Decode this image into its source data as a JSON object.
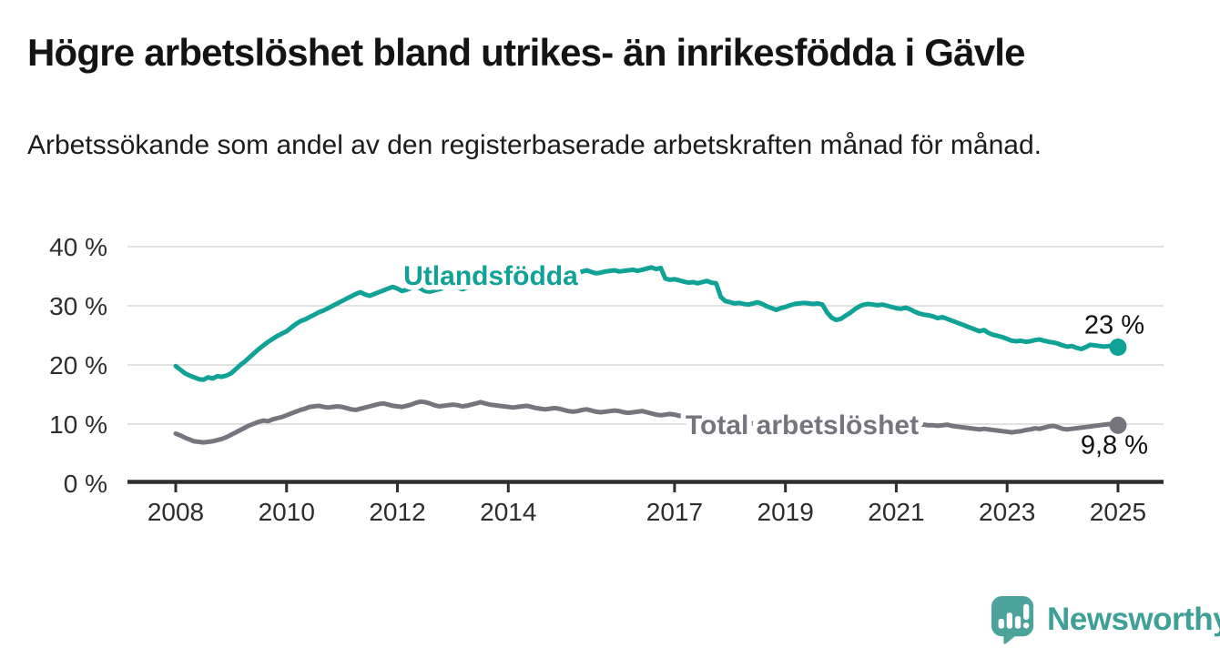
{
  "header": {
    "title": "Högre arbetslöshet bland utrikes- än inrikesfödda i Gävle",
    "subtitle": "Arbetssökande som andel av den registerbaserade arbetskraften månad för månad."
  },
  "footer": {
    "brand": "Newsworthy",
    "brand_text_color": "#3EA097",
    "brand_icon_color": "#4CA39B",
    "brand_icon": "newsworthy-speech-bubble-chart-icon"
  },
  "colors": {
    "foreign_series": "#10a296",
    "total_series": "#76757d",
    "gridline": "#d9d9d9",
    "axis": "#2e2e2e",
    "tick_text": "#2d2d2d",
    "annotation_text": "#111111",
    "background": "#ffffff"
  },
  "chart_data": {
    "type": "line",
    "unit": "%",
    "grid": true,
    "x_axis": {
      "tick_years": [
        2008,
        2010,
        2012,
        2014,
        2017,
        2019,
        2021,
        2023,
        2025
      ],
      "tick_labels": [
        "2008",
        "2010",
        "2012",
        "2014",
        "2017",
        "2019",
        "2021",
        "2023",
        "2025"
      ],
      "range_years": [
        2007.1,
        2025.8
      ]
    },
    "y_axis": {
      "ticks": [
        0,
        10,
        20,
        30,
        40
      ],
      "tick_labels": [
        "0 %",
        "10 %",
        "20 %",
        "30 %",
        "40 %"
      ],
      "range": [
        0,
        40
      ]
    },
    "series": [
      {
        "id": "utlandsfodda",
        "name": "Utlandsfödda",
        "label": "Utlandsfödda",
        "color": "#10a296",
        "start_year": 2008,
        "step_months": 1,
        "end_label": "23 %",
        "end_value": 23.0,
        "values": [
          19.8,
          19.2,
          18.6,
          18.2,
          17.9,
          17.6,
          17.5,
          17.9,
          17.7,
          18.1,
          18.0,
          18.2,
          18.6,
          19.3,
          20.0,
          20.6,
          21.3,
          22.0,
          22.7,
          23.3,
          23.9,
          24.4,
          24.9,
          25.3,
          25.7,
          26.3,
          26.9,
          27.4,
          27.7,
          28.1,
          28.5,
          28.9,
          29.2,
          29.6,
          30.0,
          30.4,
          30.8,
          31.2,
          31.6,
          32.0,
          32.3,
          31.9,
          31.7,
          32.0,
          32.3,
          32.6,
          32.9,
          33.2,
          32.9,
          32.5,
          32.7,
          33.0,
          33.3,
          32.9,
          32.5,
          32.4,
          32.6,
          32.8,
          33.0,
          33.2,
          33.4,
          33.1,
          32.8,
          33.0,
          33.3,
          33.6,
          33.8,
          34.0,
          34.2,
          34.4,
          34.5,
          34.6,
          34.7,
          34.8,
          34.9,
          35.0,
          35.1,
          35.0,
          34.9,
          35.0,
          35.1,
          35.2,
          35.1,
          35.2,
          35.3,
          35.2,
          35.3,
          35.5,
          35.8,
          36.0,
          35.7,
          35.5,
          35.6,
          35.8,
          35.9,
          36.0,
          35.8,
          35.9,
          36.0,
          36.1,
          35.9,
          36.1,
          36.3,
          36.5,
          36.2,
          36.4,
          34.6,
          34.4,
          34.5,
          34.3,
          34.1,
          33.9,
          34.0,
          33.8,
          34.0,
          34.2,
          33.9,
          33.8,
          31.5,
          30.8,
          30.6,
          30.4,
          30.5,
          30.3,
          30.2,
          30.4,
          30.6,
          30.3,
          29.9,
          29.6,
          29.3,
          29.6,
          29.8,
          30.1,
          30.3,
          30.4,
          30.5,
          30.4,
          30.3,
          30.4,
          30.2,
          28.9,
          28.0,
          27.6,
          27.8,
          28.3,
          28.8,
          29.4,
          29.9,
          30.2,
          30.3,
          30.2,
          30.1,
          30.2,
          30.0,
          29.8,
          29.6,
          29.5,
          29.7,
          29.4,
          29.0,
          28.7,
          28.5,
          28.4,
          28.2,
          27.9,
          28.1,
          27.8,
          27.5,
          27.2,
          26.9,
          26.6,
          26.3,
          26.0,
          25.7,
          25.9,
          25.4,
          25.1,
          24.9,
          24.7,
          24.4,
          24.1,
          24.0,
          24.1,
          23.9,
          24.0,
          24.2,
          24.3,
          24.1,
          23.9,
          23.8,
          23.6,
          23.3,
          23.1,
          23.2,
          22.9,
          22.7,
          23.0,
          23.4,
          23.3,
          23.2,
          23.1,
          23.2,
          23.1,
          23.0
        ]
      },
      {
        "id": "total-arbetsloshet",
        "name": "Total arbetslöshet",
        "label": "Total arbetslöshet",
        "color": "#76757d",
        "start_year": 2008,
        "step_months": 1,
        "end_label": "9,8 %",
        "end_value": 9.8,
        "values": [
          8.4,
          8.1,
          7.7,
          7.4,
          7.1,
          7.0,
          6.9,
          7.0,
          7.1,
          7.3,
          7.5,
          7.8,
          8.2,
          8.6,
          9.0,
          9.4,
          9.8,
          10.1,
          10.4,
          10.6,
          10.5,
          10.8,
          11.0,
          11.2,
          11.5,
          11.8,
          12.1,
          12.4,
          12.6,
          12.9,
          13.0,
          13.1,
          12.9,
          12.8,
          12.9,
          13.0,
          12.9,
          12.7,
          12.5,
          12.4,
          12.6,
          12.8,
          13.0,
          13.2,
          13.4,
          13.5,
          13.3,
          13.1,
          13.0,
          12.9,
          13.1,
          13.3,
          13.6,
          13.8,
          13.7,
          13.5,
          13.2,
          13.0,
          13.1,
          13.2,
          13.3,
          13.2,
          13.0,
          13.1,
          13.3,
          13.5,
          13.7,
          13.5,
          13.3,
          13.2,
          13.1,
          13.0,
          12.9,
          12.8,
          12.9,
          13.0,
          13.1,
          12.9,
          12.7,
          12.6,
          12.5,
          12.6,
          12.7,
          12.6,
          12.4,
          12.2,
          12.1,
          12.2,
          12.4,
          12.5,
          12.3,
          12.1,
          12.0,
          12.1,
          12.2,
          12.3,
          12.2,
          12.0,
          11.9,
          12.0,
          12.1,
          12.2,
          12.0,
          11.8,
          11.6,
          11.5,
          11.6,
          11.7,
          11.6,
          11.4,
          11.3,
          11.2,
          11.3,
          11.4,
          11.3,
          11.1,
          11.0,
          10.9,
          10.8,
          10.7,
          10.6,
          10.5,
          10.4,
          10.3,
          10.2,
          10.1,
          10.0,
          10.0,
          9.9,
          9.9,
          9.8,
          9.9,
          10.0,
          10.0,
          10.1,
          10.0,
          9.9,
          9.9,
          10.0,
          10.0,
          9.9,
          9.8,
          9.7,
          9.7,
          9.8,
          9.9,
          10.1,
          10.4,
          10.6,
          10.8,
          10.9,
          10.8,
          10.7,
          10.6,
          10.5,
          10.4,
          10.3,
          10.2,
          10.2,
          10.1,
          10.0,
          9.9,
          9.9,
          9.8,
          9.8,
          9.7,
          9.8,
          9.9,
          9.7,
          9.6,
          9.5,
          9.4,
          9.3,
          9.2,
          9.1,
          9.2,
          9.1,
          9.0,
          8.9,
          8.8,
          8.7,
          8.6,
          8.7,
          8.8,
          9.0,
          9.1,
          9.3,
          9.2,
          9.4,
          9.6,
          9.7,
          9.5,
          9.2,
          9.1,
          9.2,
          9.3,
          9.4,
          9.5,
          9.6,
          9.7,
          9.8,
          9.9,
          10.0,
          9.9,
          9.8
        ]
      }
    ]
  }
}
